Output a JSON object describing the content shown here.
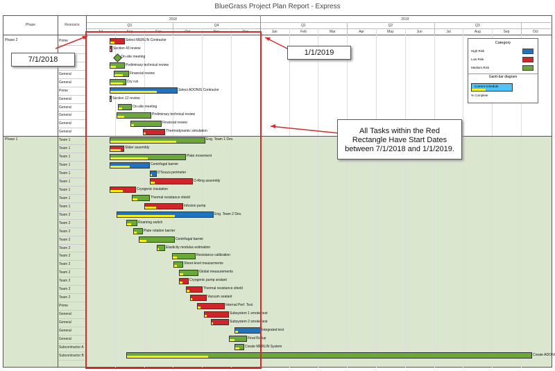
{
  "title": "BlueGrass Project Plan Report - Express",
  "header": {
    "phase_col": "Phase",
    "resource_col": "Resource",
    "years": [
      "2018",
      "2019"
    ],
    "quarters": [
      "Q3",
      "Q4",
      "Q1",
      "Q2",
      "Q3",
      "Q4"
    ],
    "months": [
      "Jul",
      "Aug",
      "Sep",
      "Oct",
      "Nov",
      "Dec",
      "Jan",
      "Feb",
      "Mar",
      "Apr",
      "May",
      "Jun",
      "Jul",
      "Aug",
      "Sep",
      "Oct"
    ]
  },
  "colors": {
    "high": "#1f74c2",
    "low": "#d0252a",
    "medium": "#6aa838",
    "progress": "#ffef00",
    "phase1_bg": "#dbe6cf",
    "callout_border": "#d62b2b"
  },
  "phases": [
    {
      "name": "Phase 2",
      "rows": [
        {
          "resource": "Prime",
          "task": "Select MERLIN Contractor",
          "category": "low",
          "progress": 0.3
        },
        {
          "resource": "",
          "task": "Section 43 review",
          "category": "low",
          "progress": 0.5
        },
        {
          "resource": "",
          "task": "On-site meeting",
          "category": "milestone",
          "progress": 0
        },
        {
          "resource": "General",
          "task": "Preliminary technical review",
          "category": "medium",
          "progress": 0.4
        },
        {
          "resource": "General",
          "task": "Financial review",
          "category": "medium",
          "progress": 0.6
        },
        {
          "resource": "General",
          "task": "Dry run",
          "category": "medium",
          "progress": 0.8
        },
        {
          "resource": "Prime",
          "task": "Select ADONIS Contractor",
          "category": "high",
          "progress": 0.7
        },
        {
          "resource": "General",
          "task": "Section 12 review",
          "category": "high",
          "progress": 0.5
        },
        {
          "resource": "General",
          "task": "On-site meeting",
          "category": "medium",
          "progress": 0.3
        },
        {
          "resource": "General",
          "task": "Preliminary technical review",
          "category": "medium",
          "progress": 0.2
        },
        {
          "resource": "General",
          "task": "Financial review",
          "category": "medium",
          "progress": 0.1
        },
        {
          "resource": "General",
          "task": "Thermodynamic simulation",
          "category": "low",
          "progress": 0.1
        }
      ]
    },
    {
      "name": "Phase 1",
      "rows": [
        {
          "resource": "Team 1",
          "task": "Eng. Team 1 Dev.",
          "category": "medium",
          "progress": 0.7
        },
        {
          "resource": "Team 1",
          "task": "Slider assembly",
          "category": "low",
          "progress": 0.8
        },
        {
          "resource": "Team 1",
          "task": "Plate movement",
          "category": "medium",
          "progress": 0.5
        },
        {
          "resource": "Team 1",
          "task": "Centrifugal barrier",
          "category": "high",
          "progress": 0.5
        },
        {
          "resource": "Team 1",
          "task": "D'Souza perimeter",
          "category": "high",
          "progress": 0.3
        },
        {
          "resource": "Team 1",
          "task": "O-Ring assembly",
          "category": "low",
          "progress": 0.1
        },
        {
          "resource": "Team 1",
          "task": "Cryogenic insulation",
          "category": "low",
          "progress": 0.5
        },
        {
          "resource": "Team 1",
          "task": "Thermal resistance shield",
          "category": "medium",
          "progress": 0.3
        },
        {
          "resource": "Team 1",
          "task": "Infusion pump",
          "category": "low",
          "progress": 0.3
        },
        {
          "resource": "Team 2",
          "task": "Eng. Team 2 Dev.",
          "category": "high",
          "progress": 0.6
        },
        {
          "resource": "Team 2",
          "task": "Roaming switch",
          "category": "medium",
          "progress": 0.4
        },
        {
          "resource": "Team 2",
          "task": "Plate rotation barrier",
          "category": "medium",
          "progress": 0.3
        },
        {
          "resource": "Team 2",
          "task": "Centrifugal barrier",
          "category": "medium",
          "progress": 0.2
        },
        {
          "resource": "Team 2",
          "task": "Elasticity modulus estimation",
          "category": "medium",
          "progress": 0.2
        },
        {
          "resource": "Team 2",
          "task": "Resistance calibration",
          "category": "medium",
          "progress": 0.2
        },
        {
          "resource": "Team 2",
          "task": "Sheet-level measurments",
          "category": "medium",
          "progress": 0.3
        },
        {
          "resource": "Team 2",
          "task": "Global measurements",
          "category": "medium",
          "progress": 0.2
        },
        {
          "resource": "Team 2",
          "task": "Cryogenic pump sealant",
          "category": "low",
          "progress": 0.3
        },
        {
          "resource": "Team 2",
          "task": "Thermal resistance shield",
          "category": "low",
          "progress": 0.2
        },
        {
          "resource": "Team 2",
          "task": "Vacuum sealant",
          "category": "low",
          "progress": 0.1
        },
        {
          "resource": "Prime",
          "task": "Internal Perf. Test",
          "category": "low",
          "progress": 0.1
        },
        {
          "resource": "General",
          "task": "Subsystem 1 smoke test",
          "category": "low",
          "progress": 0.1
        },
        {
          "resource": "General",
          "task": "Subsystem 2 smoke test",
          "category": "low",
          "progress": 0.1
        },
        {
          "resource": "General",
          "task": "Integrated test",
          "category": "high",
          "progress": 0.1
        },
        {
          "resource": "General",
          "task": "Final Rollup",
          "category": "medium",
          "progress": 0.3
        },
        {
          "resource": "Subcontractor A",
          "task": "Create MERLIN System",
          "category": "medium",
          "progress": 0.5
        },
        {
          "resource": "Subcontractor B",
          "task": "Create ADONIS System",
          "category": "medium",
          "progress": 0.2
        }
      ]
    }
  ],
  "legend": {
    "title": "Category",
    "items": [
      {
        "label": "High Risk",
        "color": "#1f74c2"
      },
      {
        "label": "Low Risk",
        "color": "#d0252a"
      },
      {
        "label": "Medium Risk",
        "color": "#6aa838"
      }
    ],
    "gantt_title": "Gantt-bar diagram",
    "current_schedule": "Current schedule",
    "pct_complete": "% Complete"
  },
  "callouts": {
    "start": "7/1/2018",
    "end": "1/1/2019",
    "note": "All Tasks within the Red Rectangle Have Start Dates between 7/1/2018 and 1/1/2019."
  }
}
